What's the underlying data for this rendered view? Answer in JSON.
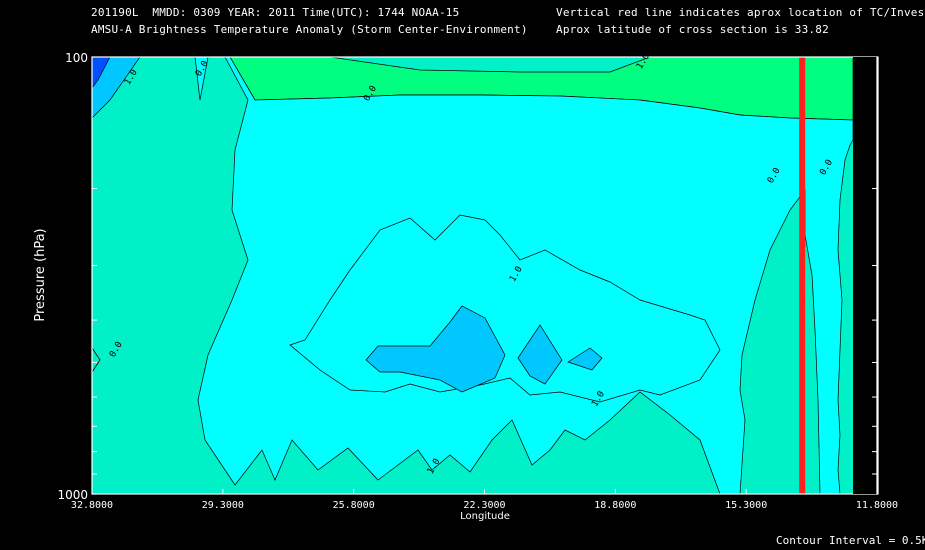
{
  "header": {
    "line1_left": "201190L  MMDD: 0309 YEAR: 2011 Time(UTC): 1744 NOAA-15",
    "line2_left": "AMSU-A Brightness Temperature Anomaly (Storm Center-Environment)",
    "line1_right": "Vertical red line indicates aprox location of TC/Invest",
    "line2_right": "Aprox latitude of cross section is 33.82"
  },
  "footer": {
    "contour_interval": "Contour Interval = 0.5K"
  },
  "colors": {
    "background": "#000000",
    "field_zero": "#00f0c8",
    "field_pos": "#00ff80",
    "field_neg": "#00ffff",
    "field_neg15": "#00c8ff",
    "field_neg2": "#0050ff",
    "tc_line": "#ff2020"
  },
  "chart_data": {
    "type": "heatmap",
    "title": "AMSU-A Brightness Temperature Anomaly (Storm Center-Environment)",
    "xlabel": "Longitude",
    "ylabel": "Pressure (hPa)",
    "x_ticks": [
      "32.8000",
      "29.3000",
      "25.8000",
      "22.3000",
      "18.8000",
      "15.3000",
      "11.8000"
    ],
    "x_tick_values": [
      32.8,
      29.3,
      25.8,
      22.3,
      18.8,
      15.3,
      11.8
    ],
    "y_ticks": [
      "100",
      "1000"
    ],
    "y_tick_values": [
      100,
      1000
    ],
    "xlim": [
      32.8,
      11.8
    ],
    "ylim": [
      1000,
      100
    ],
    "y_scale": "log",
    "contour_interval_K": 0.5,
    "contour_labels": [
      {
        "text": "1.0",
        "x": 31.7,
        "p": 112
      },
      {
        "text": "0.0",
        "x": 29.8,
        "p": 107
      },
      {
        "text": "0.0",
        "x": 25.3,
        "p": 122
      },
      {
        "text": "1.0",
        "x": 18.0,
        "p": 103
      },
      {
        "text": "0.0",
        "x": 14.5,
        "p": 188
      },
      {
        "text": "0.0",
        "x": 13.1,
        "p": 180
      },
      {
        "text": "0.0",
        "x": 32.1,
        "p": 470
      },
      {
        "text": "1.0",
        "x": 21.4,
        "p": 316
      },
      {
        "text": "1.0",
        "x": 19.2,
        "p": 610
      },
      {
        "text": "1.0",
        "x": 23.6,
        "p": 870
      }
    ],
    "tc_longitude": 13.8,
    "tc_label": "Vertical red line indicates aprox location of TC/Invest"
  }
}
